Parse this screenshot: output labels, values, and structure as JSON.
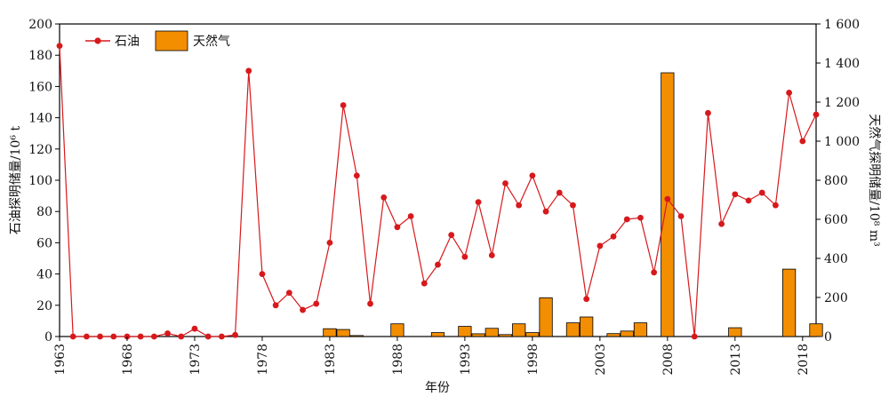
{
  "chart_data": {
    "type": "bar+line",
    "title": "",
    "xlabel": "年份",
    "ylabel_left": "石油探明储量/10⁶ t",
    "ylabel_right": "天然气探明储量/10⁸ m³",
    "left_ylim": [
      0,
      200
    ],
    "right_ylim": [
      0,
      1600
    ],
    "left_ticks": [
      "0",
      "20",
      "40",
      "60",
      "80",
      "100",
      "120",
      "140",
      "160",
      "180",
      "200"
    ],
    "right_ticks": [
      "0",
      "200",
      "400",
      "600",
      "800",
      "1 000",
      "1 200",
      "1 400",
      "1 600"
    ],
    "x_ticks": [
      "1963",
      "1968",
      "1973",
      "1978",
      "1983",
      "1988",
      "1993",
      "1998",
      "2003",
      "2008",
      "2013",
      "2018"
    ],
    "xlim": [
      1963,
      2019
    ],
    "legend_position": "top-left",
    "series": [
      {
        "name": "石油",
        "axis": "left",
        "type": "line",
        "color": "#d7191c",
        "x": [
          1963,
          1964,
          1965,
          1966,
          1967,
          1968,
          1969,
          1970,
          1971,
          1972,
          1973,
          1974,
          1975,
          1976,
          1977,
          1978,
          1979,
          1980,
          1981,
          1982,
          1983,
          1984,
          1985,
          1986,
          1987,
          1988,
          1989,
          1990,
          1991,
          1992,
          1993,
          1994,
          1995,
          1996,
          1997,
          1998,
          1999,
          2000,
          2001,
          2002,
          2003,
          2004,
          2005,
          2006,
          2007,
          2008,
          2009,
          2010,
          2011,
          2012,
          2013,
          2014,
          2015,
          2016,
          2017,
          2018,
          2019
        ],
        "values": [
          186,
          0,
          0,
          0,
          0,
          0,
          0,
          0,
          2,
          0,
          5,
          0,
          0,
          1,
          170,
          40,
          20,
          28,
          17,
          21,
          60,
          148,
          103,
          21,
          89,
          70,
          77,
          34,
          46,
          65,
          51,
          86,
          52,
          98,
          84,
          103,
          80,
          92,
          84,
          24,
          58,
          64,
          75,
          76,
          41,
          88,
          77,
          0,
          143,
          72,
          91,
          87,
          92,
          84,
          156,
          125,
          142
        ]
      },
      {
        "name": "天然气",
        "axis": "right",
        "type": "bar",
        "color": "#f28e00",
        "x": [
          1983,
          1984,
          1985,
          1988,
          1991,
          1993,
          1994,
          1995,
          1996,
          1997,
          1998,
          1999,
          2001,
          2002,
          2004,
          2005,
          2006,
          2008,
          2013,
          2017,
          2019
        ],
        "values": [
          40,
          36,
          5,
          65,
          20,
          52,
          14,
          42,
          10,
          65,
          20,
          198,
          70,
          100,
          15,
          28,
          70,
          1350,
          45,
          345,
          65
        ]
      }
    ]
  }
}
